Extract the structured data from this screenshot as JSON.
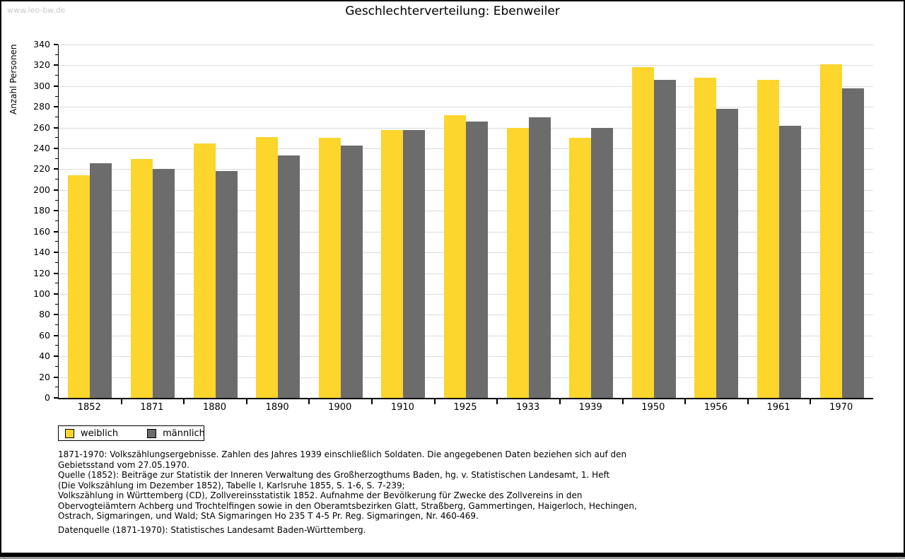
{
  "watermark": "www.leo-bw.de",
  "title": "Geschlechterverteilung: Ebenweiler",
  "chart_data": {
    "type": "bar",
    "title": "Geschlechterverteilung: Ebenweiler",
    "xlabel": "",
    "ylabel": "Anzahl Personen",
    "ylim": [
      0,
      340
    ],
    "ytick_step": 20,
    "ytick_minor_step": 10,
    "grid": true,
    "legend_position": "bottom-left",
    "categories": [
      "1852",
      "1871",
      "1880",
      "1890",
      "1900",
      "1910",
      "1925",
      "1933",
      "1939",
      "1950",
      "1956",
      "1961",
      "1970"
    ],
    "series": [
      {
        "name": "weiblich",
        "color": "#fcd52d",
        "values": [
          214,
          230,
          245,
          251,
          250,
          258,
          272,
          260,
          250,
          318,
          308,
          306,
          321
        ]
      },
      {
        "name": "männlich",
        "color": "#6c6c6c",
        "values": [
          226,
          220,
          218,
          233,
          243,
          258,
          266,
          270,
          260,
          306,
          278,
          262,
          298
        ]
      }
    ]
  },
  "legend": {
    "items": [
      {
        "label": "weiblich",
        "color": "#fcd52d"
      },
      {
        "label": "männlich",
        "color": "#6c6c6c"
      }
    ]
  },
  "footnotes": [
    "1871-1970: Volkszählungsergebnisse. Zahlen des Jahres 1939 einschließlich Soldaten. Die angegebenen Daten beziehen sich auf den",
    "Gebietsstand vom 27.05.1970.",
    "Quelle (1852): Beiträge zur Statistik der Inneren Verwaltung des Großherzogthums Baden, hg. v. Statistischen Landesamt, 1. Heft",
    "(Die Volkszählung im Dezember 1852), Tabelle I, Karlsruhe 1855, S. 1-6, S. 7-239;",
    "Volkszählung in Württemberg (CD), Zollvereinsstatistik 1852. Aufnahme der Bevölkerung für Zwecke des Zollvereins in den",
    "Obervogteiämtern Achberg und Trochtelfingen sowie in den Oberamtsbezirken Glatt, Straßberg, Gammertingen, Haigerloch, Hechingen,",
    "Ostrach, Sigmaringen, und Wald; StA Sigmaringen Ho 235 T 4-5 Pr. Reg. Sigmaringen, Nr. 460-469."
  ],
  "datasource": "Datenquelle (1871-1970): Statistisches Landesamt Baden-Württemberg."
}
